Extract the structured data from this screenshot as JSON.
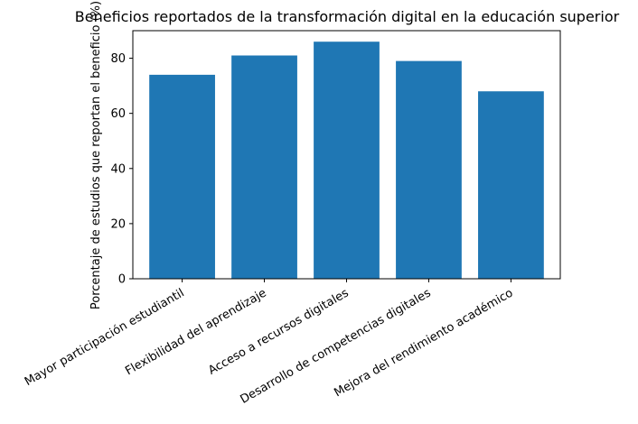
{
  "chart_data": {
    "type": "bar",
    "title": "Beneficios reportados de la transformación digital en la educación superior",
    "xlabel": "",
    "ylabel": "Porcentaje de estudios que reportan el beneficio (%)",
    "categories": [
      "Mayor participación estudiantil",
      "Flexibilidad del aprendizaje",
      "Acceso a recursos digitales",
      "Desarrollo de competencias digitales",
      "Mejora del rendimiento académico"
    ],
    "values": [
      74,
      81,
      86,
      79,
      68
    ],
    "ylim": [
      0,
      90
    ],
    "yticks": [
      0,
      20,
      40,
      60,
      80
    ],
    "bar_color": "#1f77b4",
    "grid": false,
    "legend": "none"
  }
}
